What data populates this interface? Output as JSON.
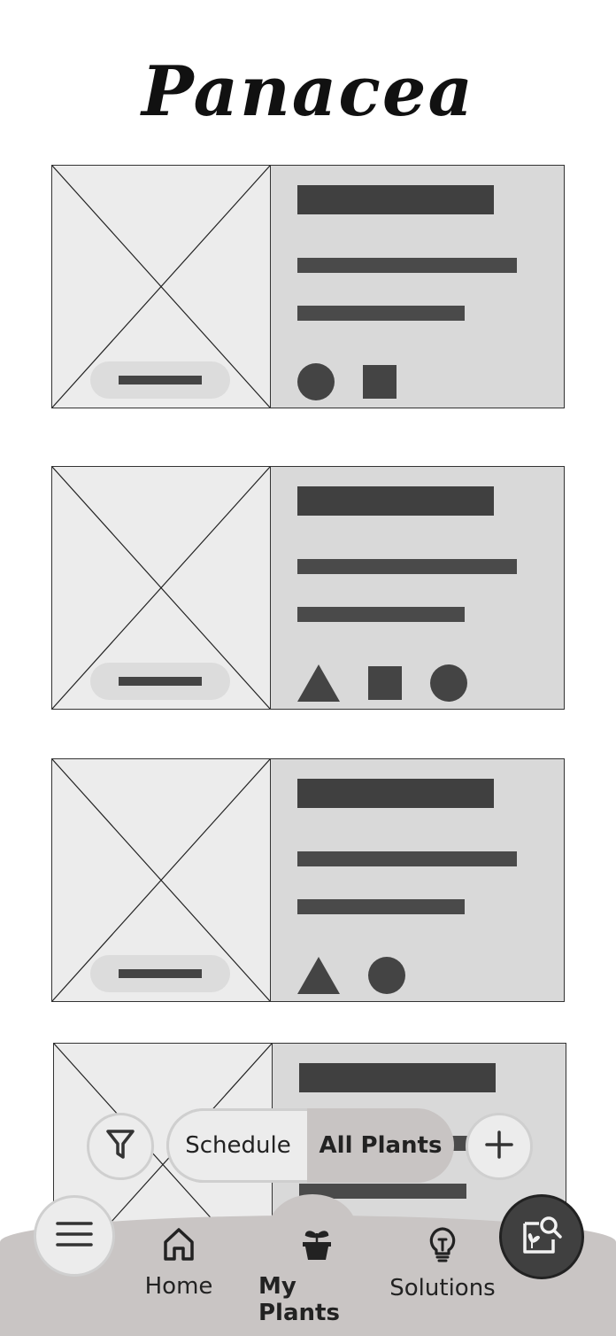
{
  "app": {
    "logo_text": "Panacea"
  },
  "plant_cards": [
    {
      "shapes": [
        "circle",
        "square"
      ]
    },
    {
      "shapes": [
        "triangle",
        "square",
        "circle"
      ]
    },
    {
      "shapes": [
        "triangle",
        "circle"
      ]
    },
    {
      "shapes": []
    }
  ],
  "toolbar": {
    "filter_icon": "filter-icon",
    "tabs": [
      {
        "label": "Schedule",
        "selected": false
      },
      {
        "label": "All Plants",
        "selected": true
      }
    ],
    "add_icon": "plus-icon"
  },
  "bottom_nav": {
    "menu_icon": "hamburger-menu-icon",
    "items": [
      {
        "label": "Home",
        "icon": "home-icon",
        "active": false
      },
      {
        "label": "My Plants",
        "icon": "plant-pot-icon",
        "active": true
      },
      {
        "label": "Solutions",
        "icon": "lightbulb-icon",
        "active": false
      }
    ],
    "scan_icon": "plant-scan-search-icon"
  },
  "colors": {
    "card_background": "#d9d9d9",
    "image_placeholder": "#ececec",
    "placeholder_text": "#404040",
    "nav_background": "#c9c5c4",
    "scan_button": "#404040"
  }
}
